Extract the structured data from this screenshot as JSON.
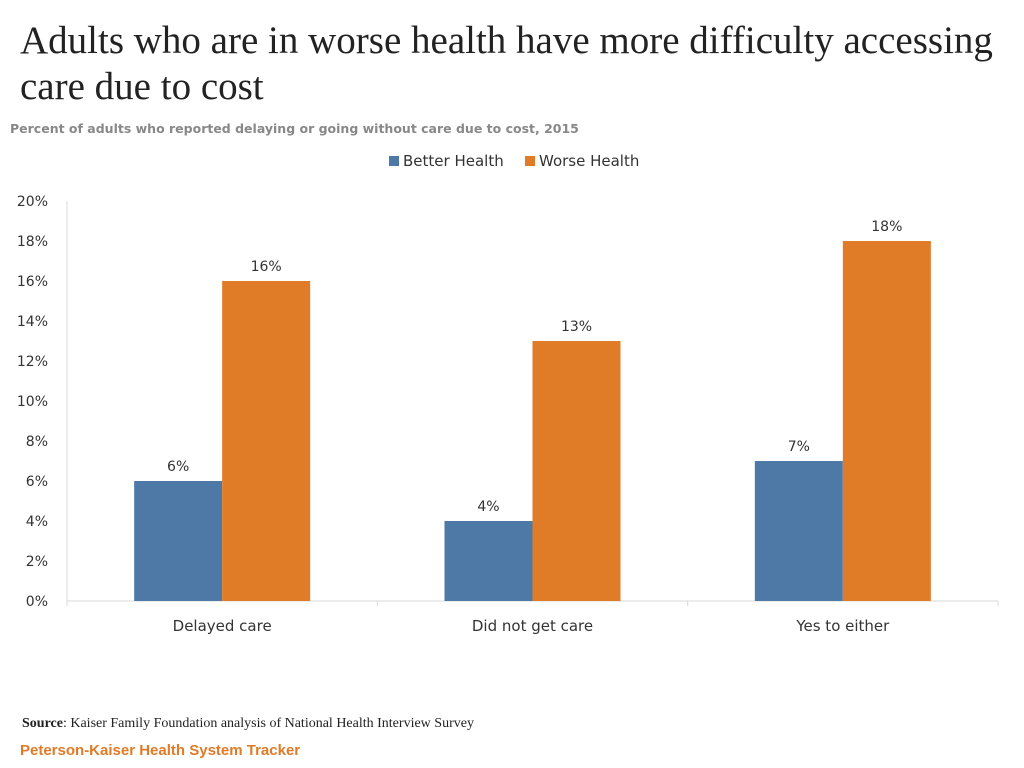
{
  "title": "Adults who are in worse health have more difficulty accessing care due to cost",
  "subtitle": "Percent of adults who reported delaying or going without care due to cost, 2015",
  "source_label": "Source",
  "source_text": ": Kaiser Family Foundation analysis of National Health Interview Survey",
  "brand": "Peterson-Kaiser Health System Tracker",
  "colors": {
    "better": "#4e79a7",
    "worse": "#e07b27"
  },
  "chart_data": {
    "type": "bar",
    "categories": [
      "Delayed care",
      "Did not get care",
      "Yes to either"
    ],
    "series": [
      {
        "name": "Better Health",
        "values": [
          6,
          4,
          7
        ],
        "labels": [
          "6%",
          "4%",
          "7%"
        ]
      },
      {
        "name": "Worse Health",
        "values": [
          16,
          13,
          18
        ],
        "labels": [
          "16%",
          "13%",
          "18%"
        ]
      }
    ],
    "ylim": [
      0,
      20
    ],
    "yticks": [
      "0%",
      "2%",
      "4%",
      "6%",
      "8%",
      "10%",
      "12%",
      "14%",
      "16%",
      "18%",
      "20%"
    ],
    "legend": "top-center",
    "grid": false
  }
}
